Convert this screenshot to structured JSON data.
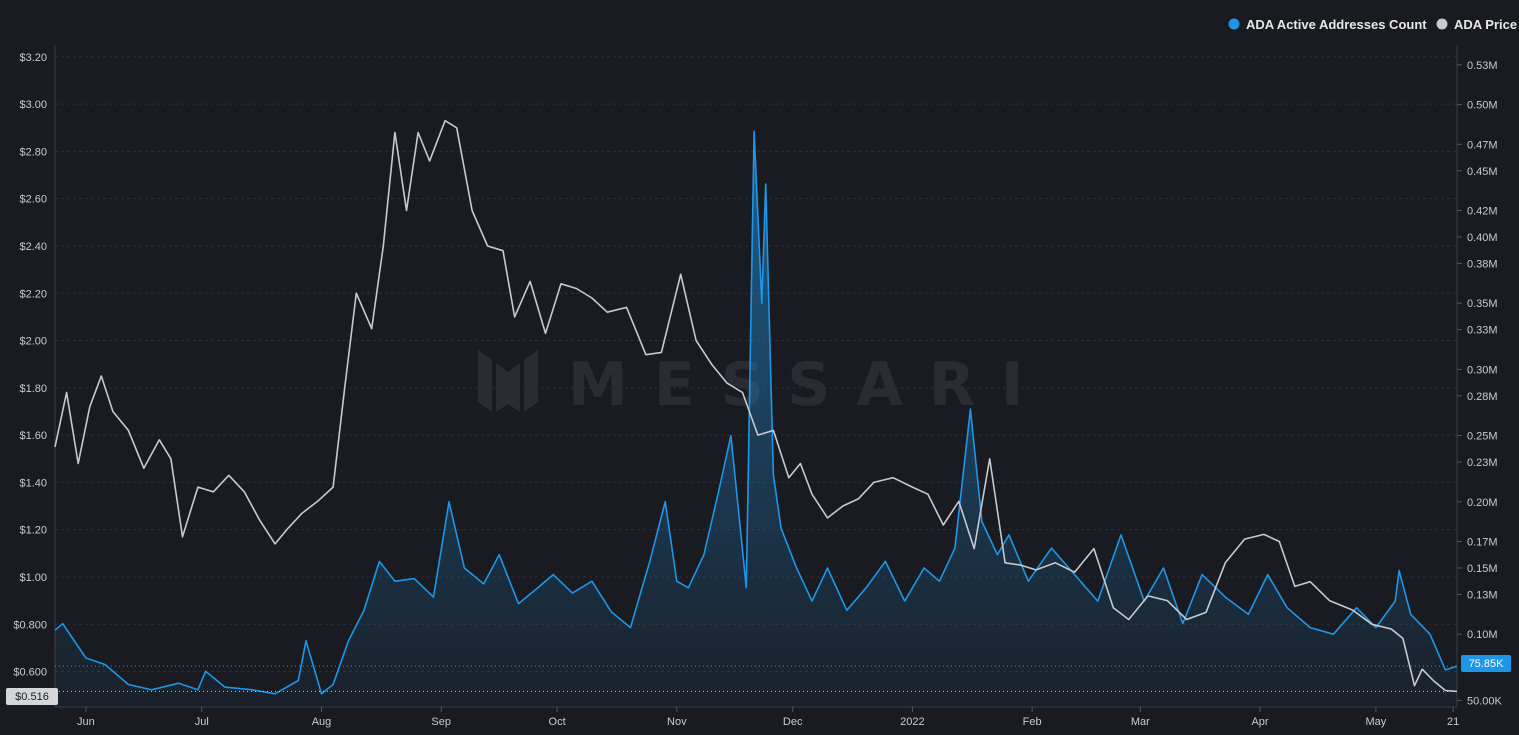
{
  "watermark": "MESSARI",
  "legend": [
    {
      "label": "ADA Active Addresses Count",
      "color": "#1e96e8"
    },
    {
      "label": "ADA Price",
      "color": "#c7c9cf"
    }
  ],
  "colors": {
    "background": "#1a1b21",
    "grid": "#2c2e35",
    "addresses": "#1e96e8",
    "price": "#c7c9cf",
    "watermark": "#2a2c33"
  },
  "badges": {
    "price_current": "$0.516",
    "addresses_current": "75.85K"
  },
  "chart_data": {
    "type": "line",
    "grid": true,
    "legend_position": "top-right",
    "x_axis": {
      "ticks": [
        "Jun",
        "Jul",
        "Aug",
        "Sep",
        "Oct",
        "Nov",
        "Dec",
        "2022",
        "Feb",
        "Mar",
        "Apr",
        "May",
        "21"
      ],
      "range": [
        "2021-05-24",
        "2022-05-22"
      ]
    },
    "y_left": {
      "ticks": [
        "$0.600",
        "$0.800",
        "$1.00",
        "$1.20",
        "$1.40",
        "$1.60",
        "$1.80",
        "$2.00",
        "$2.20",
        "$2.40",
        "$2.60",
        "$2.80",
        "$3.00",
        "$3.20"
      ],
      "range": [
        0.45,
        3.25
      ]
    },
    "y_right": {
      "ticks": [
        "50.00K",
        "0.10M",
        "0.13M",
        "0.15M",
        "0.17M",
        "0.20M",
        "0.23M",
        "0.25M",
        "0.28M",
        "0.30M",
        "0.33M",
        "0.35M",
        "0.38M",
        "0.40M",
        "0.42M",
        "0.45M",
        "0.47M",
        "0.50M",
        "0.53M"
      ],
      "range": [
        45000,
        545000
      ]
    },
    "series": [
      {
        "name": "ADA Price",
        "axis": "left",
        "color": "#c7c9cf",
        "x": [
          "2021-05-24",
          "2021-05-27",
          "2021-05-30",
          "2021-06-02",
          "2021-06-05",
          "2021-06-08",
          "2021-06-12",
          "2021-06-16",
          "2021-06-20",
          "2021-06-23",
          "2021-06-26",
          "2021-06-30",
          "2021-07-04",
          "2021-07-08",
          "2021-07-12",
          "2021-07-16",
          "2021-07-20",
          "2021-07-23",
          "2021-07-27",
          "2021-07-31",
          "2021-08-04",
          "2021-08-07",
          "2021-08-10",
          "2021-08-14",
          "2021-08-17",
          "2021-08-20",
          "2021-08-23",
          "2021-08-26",
          "2021-08-29",
          "2021-09-02",
          "2021-09-05",
          "2021-09-09",
          "2021-09-13",
          "2021-09-17",
          "2021-09-20",
          "2021-09-24",
          "2021-09-28",
          "2021-10-02",
          "2021-10-06",
          "2021-10-10",
          "2021-10-14",
          "2021-10-19",
          "2021-10-24",
          "2021-10-28",
          "2021-11-02",
          "2021-11-06",
          "2021-11-10",
          "2021-11-14",
          "2021-11-18",
          "2021-11-22",
          "2021-11-26",
          "2021-11-30",
          "2021-12-03",
          "2021-12-06",
          "2021-12-10",
          "2021-12-14",
          "2021-12-18",
          "2021-12-22",
          "2021-12-27",
          "2022-01-01",
          "2022-01-05",
          "2022-01-09",
          "2022-01-13",
          "2022-01-17",
          "2022-01-21",
          "2022-01-25",
          "2022-01-29",
          "2022-02-02",
          "2022-02-07",
          "2022-02-12",
          "2022-02-17",
          "2022-02-22",
          "2022-02-26",
          "2022-03-03",
          "2022-03-08",
          "2022-03-13",
          "2022-03-18",
          "2022-03-23",
          "2022-03-28",
          "2022-04-02",
          "2022-04-06",
          "2022-04-10",
          "2022-04-14",
          "2022-04-19",
          "2022-04-25",
          "2022-04-30",
          "2022-05-05",
          "2022-05-08",
          "2022-05-11",
          "2022-05-13",
          "2022-05-16",
          "2022-05-19",
          "2022-05-22"
        ],
        "values": [
          1.55,
          1.78,
          1.48,
          1.72,
          1.85,
          1.7,
          1.62,
          1.46,
          1.58,
          1.5,
          1.17,
          1.38,
          1.36,
          1.43,
          1.36,
          1.24,
          1.14,
          1.2,
          1.27,
          1.32,
          1.38,
          1.8,
          2.2,
          2.05,
          2.4,
          2.88,
          2.55,
          2.88,
          2.76,
          2.93,
          2.9,
          2.55,
          2.4,
          2.38,
          2.1,
          2.25,
          2.03,
          2.24,
          2.22,
          2.18,
          2.12,
          2.14,
          1.94,
          1.95,
          2.28,
          2.0,
          1.9,
          1.82,
          1.78,
          1.6,
          1.62,
          1.42,
          1.48,
          1.35,
          1.25,
          1.3,
          1.33,
          1.4,
          1.42,
          1.38,
          1.35,
          1.22,
          1.32,
          1.12,
          1.5,
          1.06,
          1.05,
          1.03,
          1.06,
          1.02,
          1.12,
          0.87,
          0.82,
          0.92,
          0.9,
          0.82,
          0.85,
          1.06,
          1.16,
          1.18,
          1.15,
          0.96,
          0.98,
          0.9,
          0.86,
          0.8,
          0.78,
          0.74,
          0.54,
          0.61,
          0.56,
          0.52,
          0.516
        ]
      },
      {
        "name": "ADA Active Addresses Count",
        "axis": "right",
        "color": "#1e96e8",
        "x": [
          "2021-05-24",
          "2021-05-26",
          "2021-06-01",
          "2021-06-06",
          "2021-06-12",
          "2021-06-18",
          "2021-06-25",
          "2021-06-30",
          "2021-07-02",
          "2021-07-07",
          "2021-07-14",
          "2021-07-20",
          "2021-07-26",
          "2021-07-28",
          "2021-08-01",
          "2021-08-04",
          "2021-08-08",
          "2021-08-12",
          "2021-08-16",
          "2021-08-20",
          "2021-08-25",
          "2021-08-30",
          "2021-09-03",
          "2021-09-07",
          "2021-09-12",
          "2021-09-16",
          "2021-09-21",
          "2021-09-26",
          "2021-09-30",
          "2021-10-05",
          "2021-10-10",
          "2021-10-15",
          "2021-10-20",
          "2021-10-25",
          "2021-10-29",
          "2021-11-01",
          "2021-11-04",
          "2021-11-08",
          "2021-11-12",
          "2021-11-15",
          "2021-11-19",
          "2021-11-21",
          "2021-11-23",
          "2021-11-24",
          "2021-11-26",
          "2021-11-28",
          "2021-12-02",
          "2021-12-06",
          "2021-12-10",
          "2021-12-15",
          "2021-12-20",
          "2021-12-25",
          "2021-12-30",
          "2022-01-04",
          "2022-01-08",
          "2022-01-12",
          "2022-01-16",
          "2022-01-19",
          "2022-01-23",
          "2022-01-26",
          "2022-01-31",
          "2022-02-06",
          "2022-02-12",
          "2022-02-18",
          "2022-02-24",
          "2022-03-02",
          "2022-03-07",
          "2022-03-12",
          "2022-03-17",
          "2022-03-23",
          "2022-03-29",
          "2022-04-03",
          "2022-04-08",
          "2022-04-14",
          "2022-04-20",
          "2022-04-26",
          "2022-05-01",
          "2022-05-06",
          "2022-05-07",
          "2022-05-10",
          "2022-05-15",
          "2022-05-19",
          "2022-05-22"
        ],
        "values": [
          103000,
          108000,
          82000,
          77000,
          62000,
          58000,
          63000,
          58000,
          72000,
          60000,
          58000,
          55000,
          65000,
          95000,
          55000,
          62000,
          95000,
          118000,
          155000,
          140000,
          142000,
          128000,
          200000,
          150000,
          138000,
          160000,
          123000,
          135000,
          145000,
          131000,
          140000,
          117000,
          105000,
          155000,
          200000,
          140000,
          135000,
          160000,
          210000,
          250000,
          135000,
          480000,
          350000,
          440000,
          220000,
          180000,
          150000,
          125000,
          150000,
          118000,
          135000,
          155000,
          125000,
          150000,
          140000,
          165000,
          270000,
          185000,
          160000,
          175000,
          140000,
          165000,
          145000,
          125000,
          175000,
          125000,
          150000,
          108000,
          145000,
          128000,
          115000,
          145000,
          120000,
          105000,
          100000,
          120000,
          105000,
          125000,
          148000,
          115000,
          100000,
          73000,
          75850
        ]
      }
    ]
  }
}
